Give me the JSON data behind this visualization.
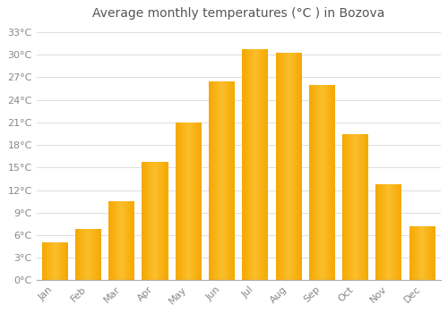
{
  "title": "Average monthly temperatures (°C ) in Bozova",
  "months": [
    "Jan",
    "Feb",
    "Mar",
    "Apr",
    "May",
    "Jun",
    "Jul",
    "Aug",
    "Sep",
    "Oct",
    "Nov",
    "Dec"
  ],
  "temperatures": [
    5.0,
    6.8,
    10.5,
    15.8,
    21.0,
    26.5,
    30.8,
    30.3,
    26.0,
    19.5,
    12.8,
    7.2
  ],
  "bar_color_dark": "#F5A800",
  "bar_color_light": "#FFD050",
  "background_color": "#FFFFFF",
  "grid_color": "#DDDDDD",
  "ytick_labels": [
    "0°C",
    "3°C",
    "6°C",
    "9°C",
    "12°C",
    "15°C",
    "18°C",
    "21°C",
    "24°C",
    "27°C",
    "30°C",
    "33°C"
  ],
  "ytick_values": [
    0,
    3,
    6,
    9,
    12,
    15,
    18,
    21,
    24,
    27,
    30,
    33
  ],
  "ylim": [
    0,
    34
  ],
  "title_fontsize": 10,
  "tick_fontsize": 8,
  "font_color": "#888888",
  "bar_width": 0.78
}
